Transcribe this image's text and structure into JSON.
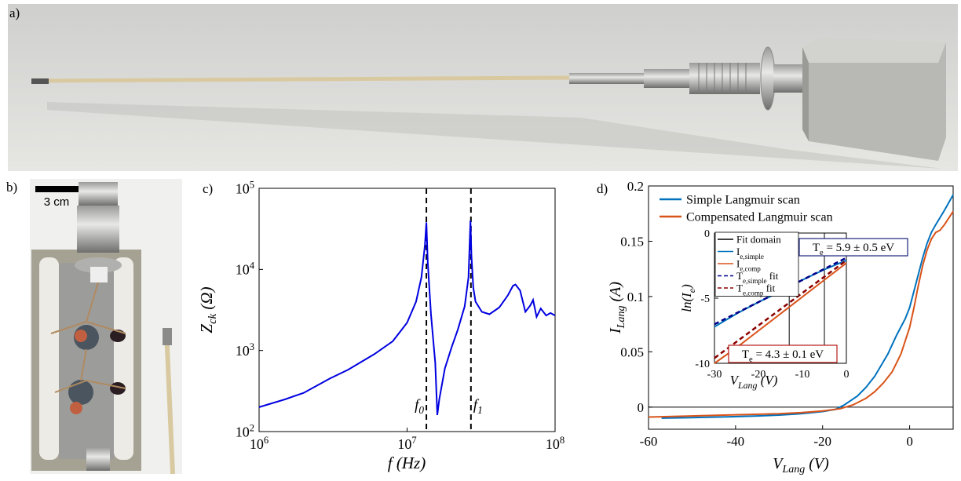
{
  "panel_labels": [
    "a)",
    "b)",
    "c)",
    "d)"
  ],
  "scale_bar": "3 cm",
  "chart_data": [
    {
      "type": "line",
      "xscale": "log",
      "yscale": "log",
      "xlabel": "f (Hz)",
      "ylabel": "Z_{ck} (Ω)",
      "xlim": [
        1000000,
        100000000
      ],
      "ylim": [
        100,
        100000
      ],
      "xticks": [
        {
          "value": 1000000,
          "label": "10^{6}"
        },
        {
          "value": 10000000,
          "label": "10^{7}"
        },
        {
          "value": 100000000,
          "label": "10^{8}"
        }
      ],
      "yticks": [
        {
          "value": 100,
          "label": "10^{2}"
        },
        {
          "value": 1000,
          "label": "10^{3}"
        },
        {
          "value": 10000,
          "label": "10^{4}"
        },
        {
          "value": 100000,
          "label": "10^{5}"
        }
      ],
      "vlines": [
        {
          "value": 13500000,
          "label": "f_{0}"
        },
        {
          "value": 27000000,
          "label": "f_{1}"
        }
      ],
      "series": [
        {
          "color": "#0000e0",
          "x": [
            1000000,
            1500000,
            2000000,
            3000000,
            4000000,
            6000000,
            8000000,
            10000000,
            11500000,
            12500000,
            13200000,
            13500000,
            13800000,
            14500000,
            15500000,
            16000000,
            16500000,
            18000000,
            20000000,
            22000000,
            24500000,
            26000000,
            26800000,
            27200000,
            28000000,
            29000000,
            32000000,
            36000000,
            42000000,
            48000000,
            52000000,
            54000000,
            58000000,
            63000000,
            68000000,
            71000000,
            75000000,
            80000000,
            87000000,
            93000000,
            100000000
          ],
          "values": [
            200,
            250,
            300,
            450,
            580,
            900,
            1300,
            2200,
            4000,
            8000,
            20000,
            38000,
            12000,
            2800,
            700,
            160,
            250,
            600,
            1100,
            1800,
            3500,
            8000,
            40000,
            15000,
            6000,
            4000,
            3000,
            2800,
            3400,
            4800,
            6300,
            6500,
            5500,
            3000,
            3600,
            4200,
            2600,
            3300,
            2700,
            2900,
            2700
          ]
        }
      ]
    },
    {
      "type": "line",
      "xlabel": "V_{Lang} (V)",
      "ylabel": "I_{Lang} (A)",
      "xlim": [
        -60,
        10
      ],
      "ylim": [
        -0.02,
        0.2
      ],
      "xticks": [
        -60,
        -40,
        -20,
        0
      ],
      "yticks": [
        0,
        0.05,
        0.1,
        0.15,
        0.2
      ],
      "series": [
        {
          "name": "Simple Langmuir scan",
          "color": "#0072bd",
          "x": [
            -57,
            -50,
            -42,
            -35,
            -30,
            -25,
            -20,
            -17,
            -15,
            -12,
            -10,
            -8,
            -5,
            -3,
            -1,
            0,
            1,
            2,
            3,
            4,
            5,
            6,
            8,
            10
          ],
          "values": [
            -0.01,
            -0.0095,
            -0.0088,
            -0.008,
            -0.0072,
            -0.006,
            -0.004,
            -0.002,
            0.002,
            0.01,
            0.018,
            0.028,
            0.048,
            0.065,
            0.08,
            0.09,
            0.105,
            0.12,
            0.135,
            0.148,
            0.158,
            0.165,
            0.178,
            0.192
          ]
        },
        {
          "name": "Compensated Langmuir scan",
          "color": "#d95319",
          "x": [
            -60,
            -50,
            -40,
            -30,
            -25,
            -20,
            -16,
            -13,
            -10,
            -8,
            -6,
            -4,
            -2,
            0,
            1,
            2,
            3,
            4,
            5,
            6,
            7,
            8,
            10
          ],
          "values": [
            -0.009,
            -0.008,
            -0.007,
            -0.006,
            -0.005,
            -0.0035,
            -0.0015,
            0.002,
            0.008,
            0.014,
            0.022,
            0.032,
            0.048,
            0.072,
            0.09,
            0.11,
            0.128,
            0.142,
            0.152,
            0.158,
            0.16,
            0.165,
            0.177
          ]
        }
      ]
    },
    {
      "type": "line",
      "xlabel": "V_{Lang} (V)",
      "ylabel": "ln(I_{e})",
      "xlim": [
        -30,
        0
      ],
      "ylim": [
        -10,
        0
      ],
      "xticks": [
        -30,
        -20,
        -10,
        0
      ],
      "yticks": [
        -10,
        -5,
        0
      ],
      "vlines": {
        "name": "Fit domain",
        "color": "#000000",
        "values": [
          -13,
          -5
        ]
      },
      "series": [
        {
          "name": "I_{e,simple}",
          "color": "#0072bd",
          "x": [
            -30,
            -25,
            -20,
            -15,
            -10,
            -5,
            0
          ],
          "values": [
            -7.2,
            -6.2,
            -5.3,
            -4.5,
            -3.6,
            -2.8,
            -2.1
          ]
        },
        {
          "name": "I_{e,comp}",
          "color": "#d95319",
          "x": [
            -30,
            -25,
            -20,
            -15,
            -10,
            -5,
            0
          ],
          "values": [
            -10,
            -8.8,
            -7.5,
            -6.2,
            -4.9,
            -3.6,
            -2.3
          ]
        },
        {
          "name": "T_{e,simple} fit",
          "color": "#00008b",
          "dash": true,
          "x": [
            -30,
            0
          ],
          "values": [
            -7.0,
            -1.9
          ]
        },
        {
          "name": "T_{e,comp} fit",
          "color": "#8b0000",
          "dash": true,
          "x": [
            -30,
            0
          ],
          "values": [
            -9.6,
            -2.1
          ]
        }
      ],
      "annotations": [
        "T_{e} = 5.9 ± 0.5 eV",
        "T_{e} = 4.3 ± 0.1 eV"
      ]
    }
  ]
}
